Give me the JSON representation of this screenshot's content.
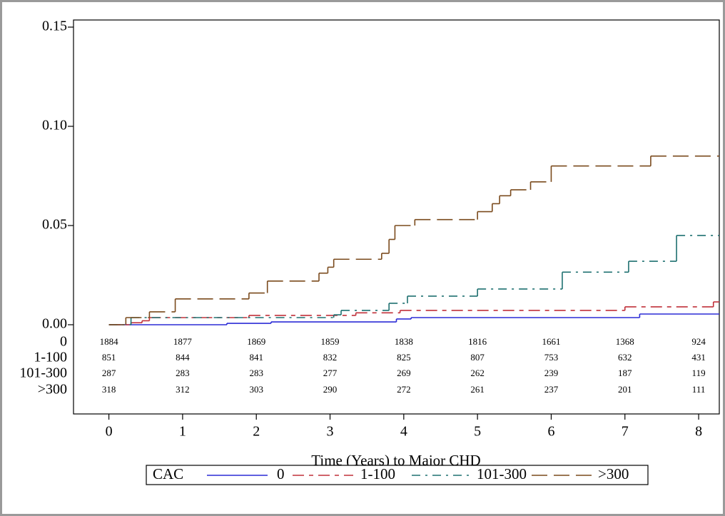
{
  "chart_data": {
    "type": "step",
    "x_label": "Time (Years) to Major CHD",
    "legend_title": "CAC",
    "xlim": [
      -0.48,
      8.28
    ],
    "ylim": [
      0,
      0.15
    ],
    "xticks": [
      0,
      1,
      2,
      3,
      4,
      5,
      6,
      7,
      8
    ],
    "yticks": [
      {
        "value": 0,
        "label": "0.00"
      },
      {
        "value": 0.05,
        "label": "0.05"
      },
      {
        "value": 0.1,
        "label": "0.10"
      },
      {
        "value": 0.15,
        "label": "0.15"
      }
    ],
    "series": [
      {
        "name": "0",
        "color": "#2b2bd6",
        "x": [
          0,
          1.6,
          2.2,
          3.9,
          4.1,
          7.2
        ],
        "values": [
          0,
          0.0007,
          0.0014,
          0.0029,
          0.0036,
          0.0054
        ]
      },
      {
        "name": "1-100",
        "color": "#c0303a",
        "x": [
          0,
          0.3,
          0.45,
          0.55,
          1.9,
          3.35,
          3.95,
          7.0,
          8.2
        ],
        "values": [
          0,
          0.001,
          0.002,
          0.0036,
          0.0047,
          0.006,
          0.0072,
          0.009,
          0.0115
        ]
      },
      {
        "name": "101-300",
        "color": "#1e7070",
        "x": [
          0,
          0.3,
          3.05,
          3.15,
          3.8,
          4.05,
          5.0,
          6.15,
          7.05,
          7.7
        ],
        "values": [
          0,
          0.0036,
          0.005,
          0.0072,
          0.0108,
          0.0144,
          0.018,
          0.0265,
          0.032,
          0.045
        ]
      },
      {
        "name": ">300",
        "color": "#7a4a1c",
        "x": [
          0,
          0.23,
          0.55,
          0.9,
          1.9,
          2.15,
          2.85,
          2.97,
          3.05,
          3.7,
          3.8,
          3.88,
          4.15,
          5.0,
          5.2,
          5.3,
          5.45,
          5.72,
          6.0,
          7.35
        ],
        "values": [
          0,
          0.0036,
          0.0065,
          0.013,
          0.016,
          0.022,
          0.026,
          0.029,
          0.033,
          0.036,
          0.043,
          0.05,
          0.053,
          0.057,
          0.061,
          0.065,
          0.068,
          0.072,
          0.08,
          0.085
        ]
      }
    ],
    "risk_table": {
      "groups": [
        "0",
        "1-100",
        "101-300",
        ">300"
      ],
      "rows": [
        [
          1884,
          1877,
          1869,
          1859,
          1838,
          1816,
          1661,
          1368,
          924
        ],
        [
          851,
          844,
          841,
          832,
          825,
          807,
          753,
          632,
          431
        ],
        [
          287,
          283,
          283,
          277,
          269,
          262,
          239,
          187,
          119
        ],
        [
          318,
          312,
          303,
          290,
          272,
          261,
          237,
          201,
          111
        ]
      ]
    }
  }
}
